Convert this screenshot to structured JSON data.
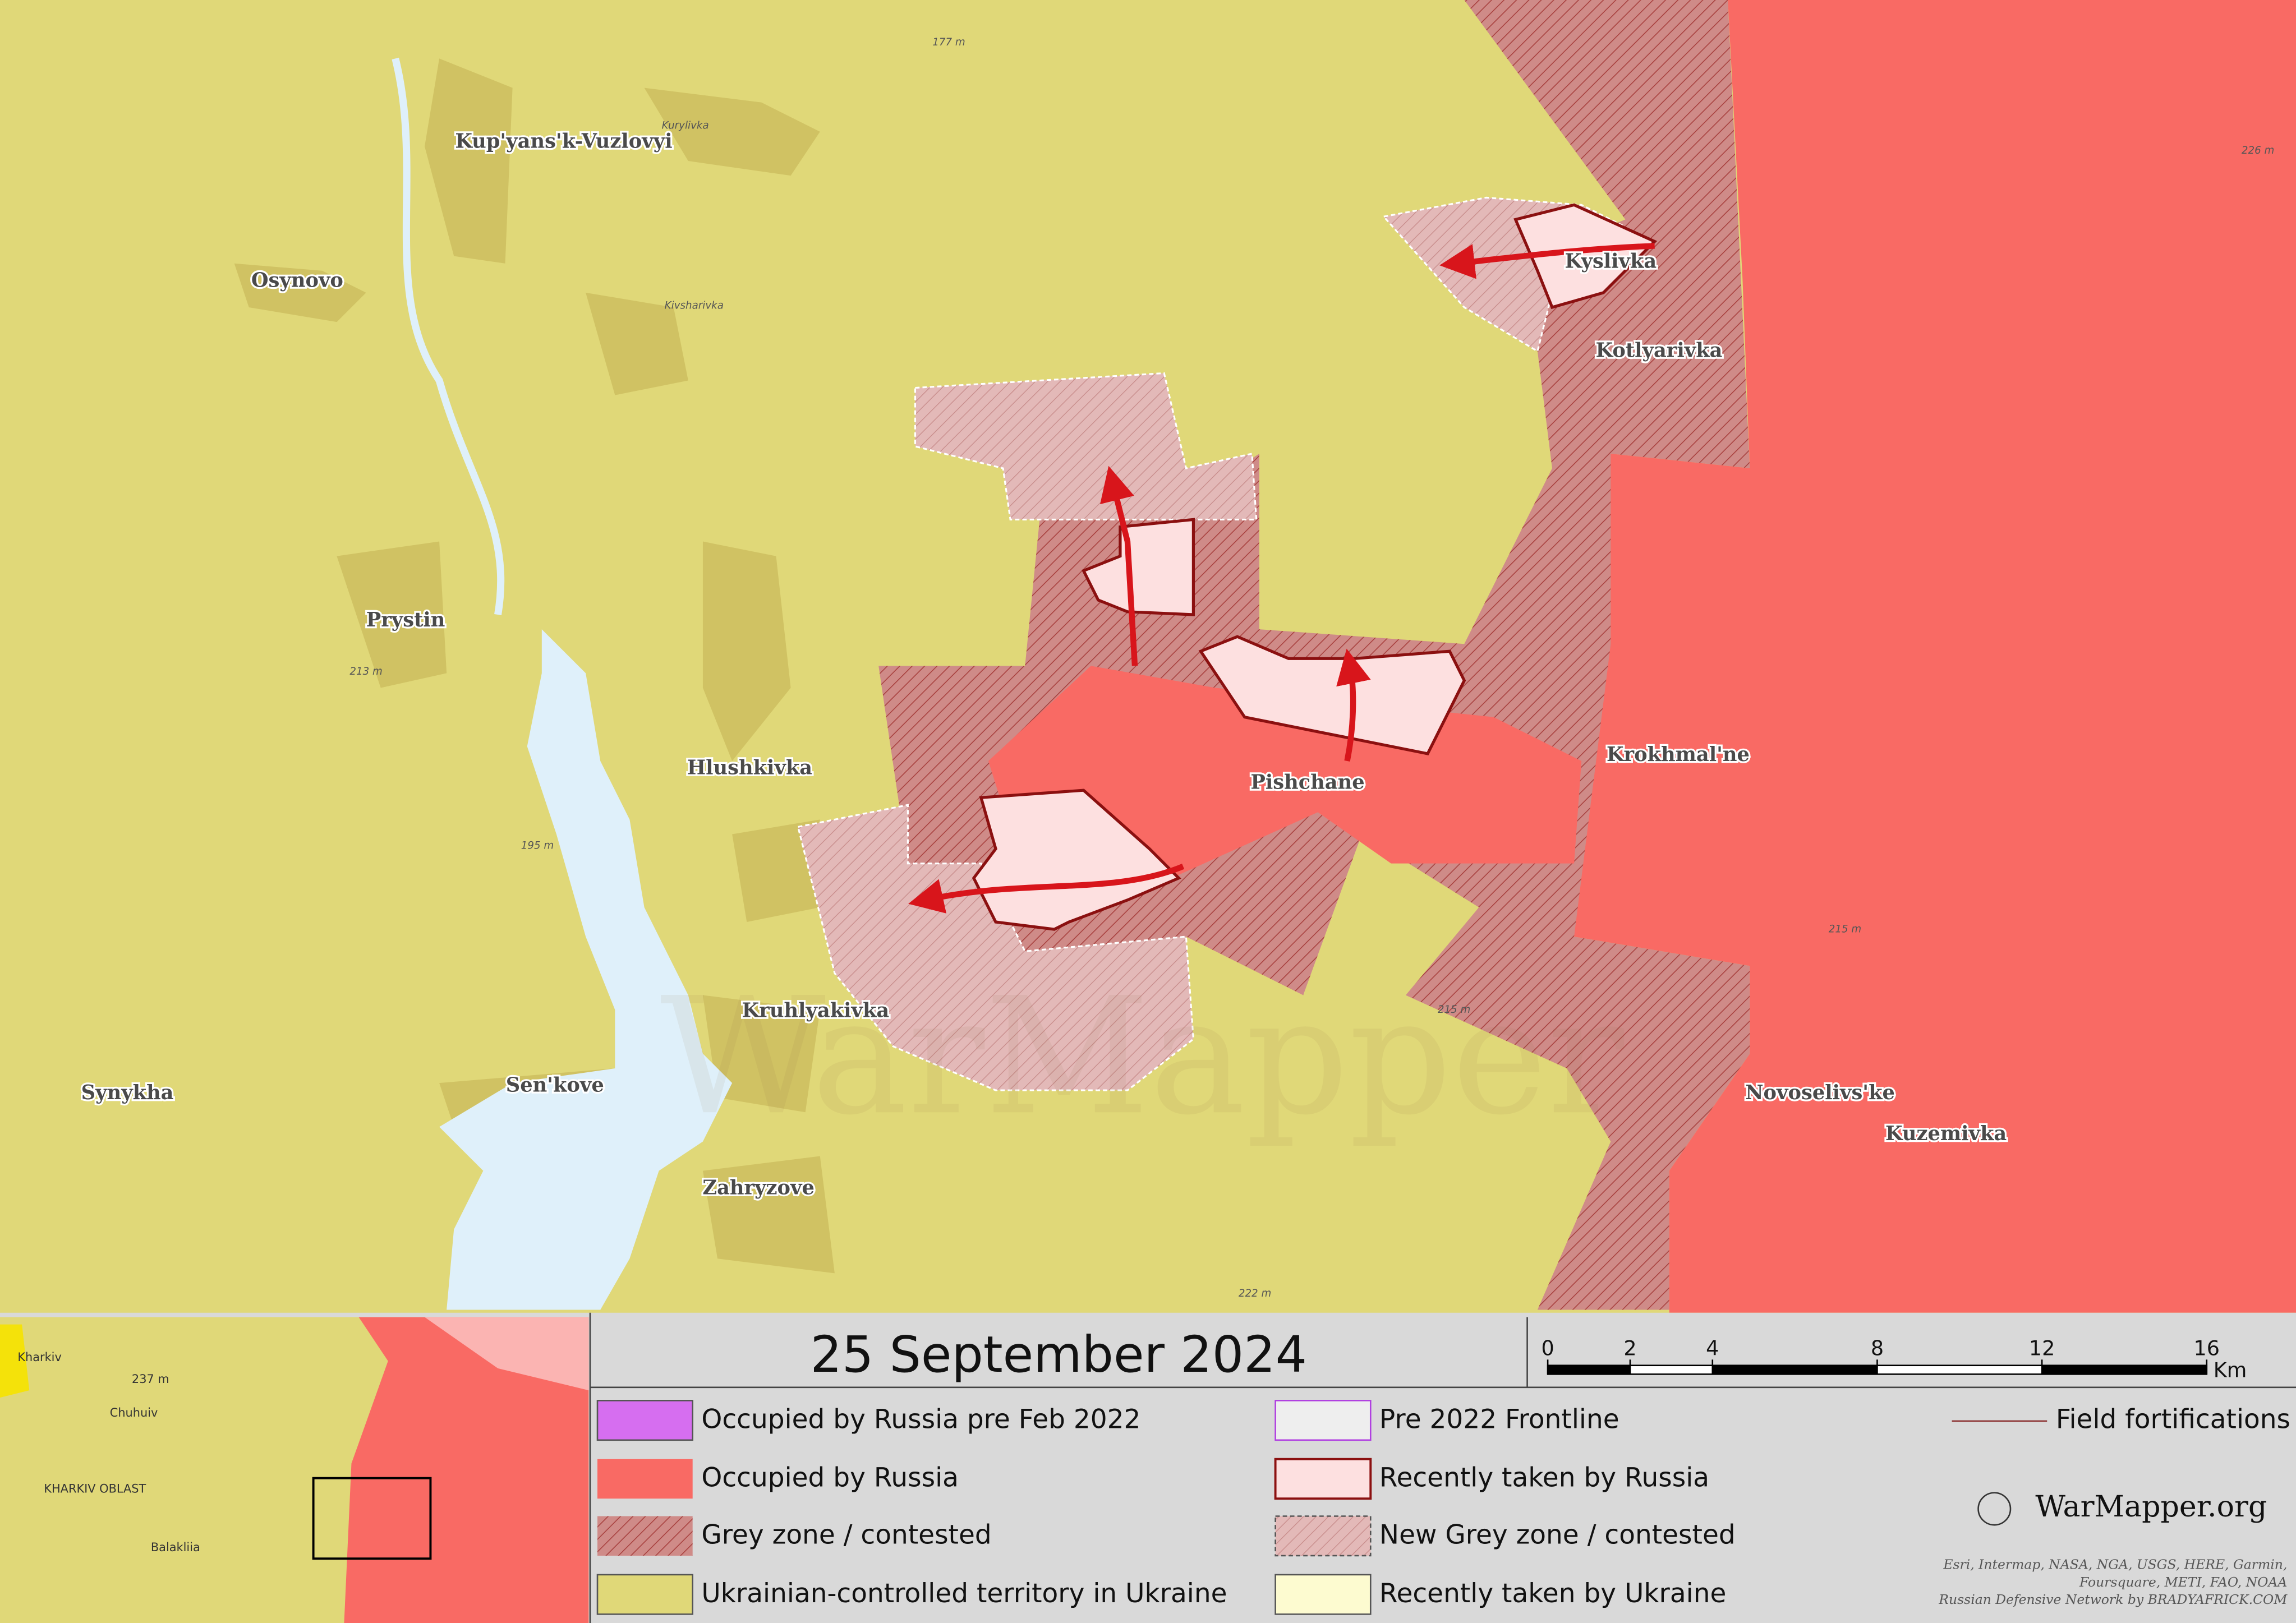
{
  "map": {
    "places": [
      "Kup'yans'k-Vuzlovyi",
      "Osynovo",
      "Prystin",
      "Hlushkivka",
      "Kruhlyakivka",
      "Sen'kove",
      "Synykha",
      "Zahryzove",
      "Kyslivka",
      "Kotlyarivka",
      "Pishchane",
      "Krokhmal'ne",
      "Novoselivs'ke",
      "Kuzemivka"
    ],
    "minor_labels": [
      "Kurylivka",
      "Kivsharivka",
      "177 m",
      "213 m",
      "195 m",
      "226 m",
      "215 m",
      "215 m",
      "222 m"
    ],
    "watermark": "WarMapper"
  },
  "footer": {
    "date": "25 September 2024",
    "scale": {
      "ticks": [
        0,
        2,
        4,
        8,
        12,
        16
      ],
      "unit": "Km"
    },
    "legend": [
      "Occupied by Russia pre Feb 2022",
      "Occupied by Russia",
      "Grey zone / contested",
      "Ukrainian-controlled territory in Ukraine",
      "Pre 2022 Frontline",
      "Recently taken by Russia",
      "New Grey zone / contested",
      "Recently taken by Ukraine",
      "Field fortifications"
    ],
    "brand": "WarMapper.org",
    "credits": [
      "Esri, Intermap, NASA, NGA, USGS, HERE, Garmin,",
      "Foursquare, METI, FAO, NOAA",
      "Russian Defensive Network by BRADYAFRICK.COM"
    ]
  },
  "inset": {
    "labels": [
      "Kharkiv",
      "Chuhuiv",
      "KHARKIV OBLAST",
      "Balakliia",
      "237 m"
    ]
  }
}
